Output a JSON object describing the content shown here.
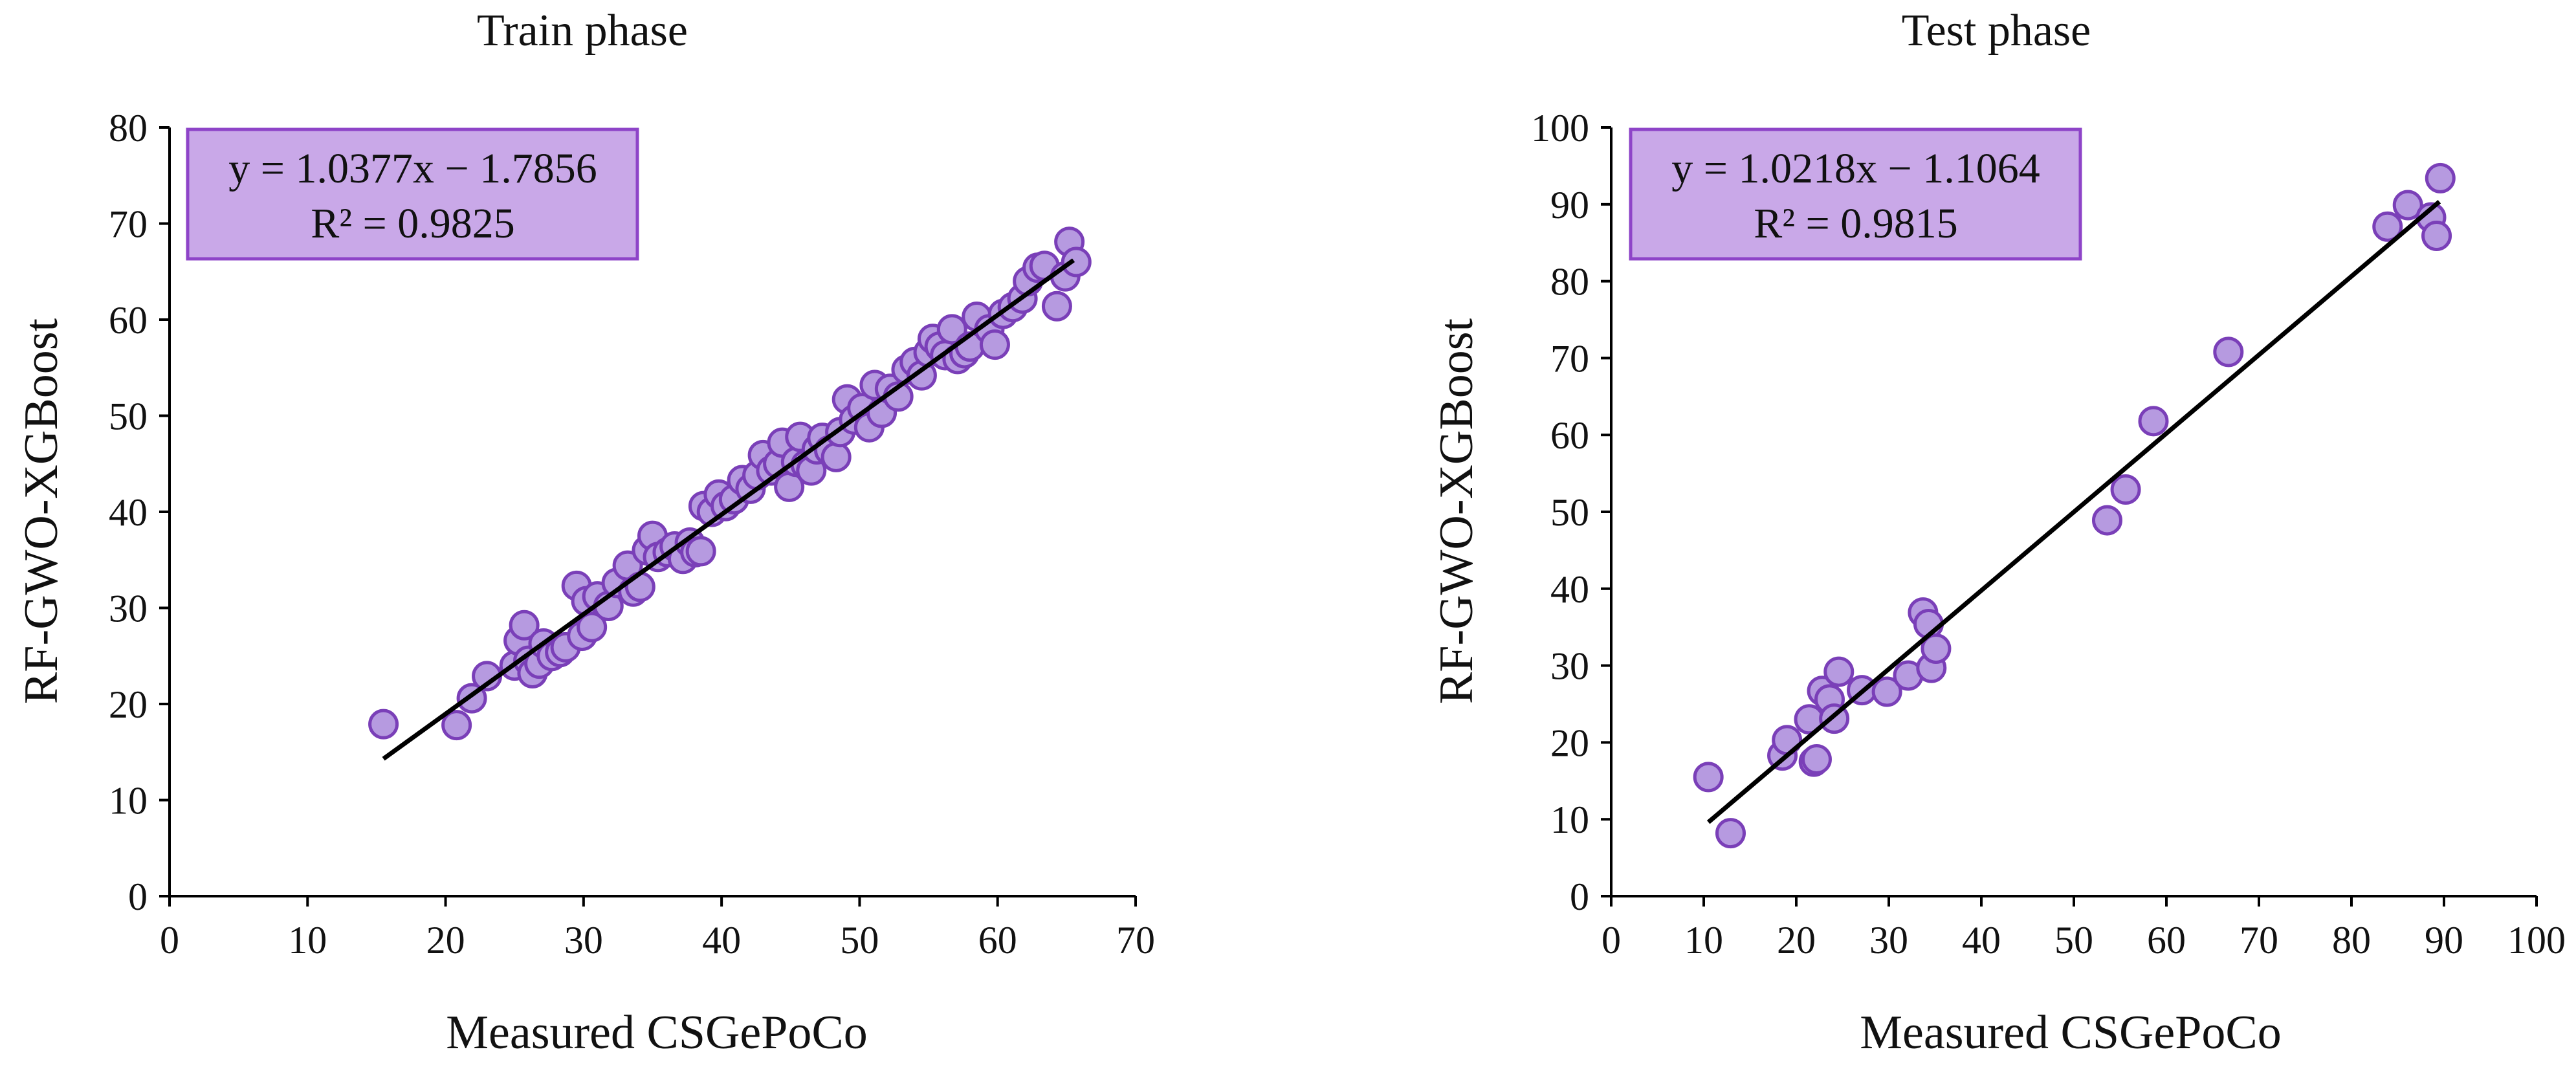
{
  "colors": {
    "marker_fill": "#B69AE0",
    "marker_stroke": "#7A3FB8",
    "box_fill": "#C9A8E8",
    "box_stroke": "#8E44C8",
    "axis": "#000000",
    "fit_line": "#000000"
  },
  "chart_data": [
    {
      "type": "scatter",
      "title": "Train phase",
      "xlabel": "Measured CSGePoCo",
      "ylabel": "RF-GWO-XGBoost",
      "xlim": [
        0,
        70
      ],
      "ylim": [
        0,
        80
      ],
      "xticks": [
        0,
        10,
        20,
        30,
        40,
        50,
        60,
        70
      ],
      "yticks": [
        0,
        10,
        20,
        30,
        40,
        50,
        60,
        70,
        80
      ],
      "equation": "y = 1.0377x − 1.7856",
      "r2": "R² = 0.9825",
      "fit": {
        "slope": 1.0377,
        "intercept": -1.7856,
        "x_range": [
          15.5,
          65.5
        ]
      },
      "grid": false,
      "points": [
        [
          15.5,
          17.9
        ],
        [
          20.8,
          17.8
        ],
        [
          21.9,
          20.6
        ],
        [
          23.0,
          22.9
        ],
        [
          25.0,
          24.0
        ],
        [
          25.3,
          26.6
        ],
        [
          25.7,
          28.2
        ],
        [
          26.0,
          24.5
        ],
        [
          26.3,
          23.2
        ],
        [
          26.8,
          24.2
        ],
        [
          27.1,
          26.3
        ],
        [
          27.7,
          25.0
        ],
        [
          28.3,
          25.4
        ],
        [
          28.7,
          25.9
        ],
        [
          29.5,
          32.3
        ],
        [
          29.9,
          27.1
        ],
        [
          30.2,
          30.7
        ],
        [
          30.6,
          28.0
        ],
        [
          31.0,
          31.2
        ],
        [
          31.8,
          30.2
        ],
        [
          32.4,
          32.6
        ],
        [
          33.2,
          34.4
        ],
        [
          33.6,
          31.7
        ],
        [
          34.1,
          32.2
        ],
        [
          34.6,
          36.0
        ],
        [
          35.0,
          37.5
        ],
        [
          35.4,
          35.3
        ],
        [
          36.1,
          35.8
        ],
        [
          36.6,
          36.4
        ],
        [
          37.2,
          35.1
        ],
        [
          37.7,
          36.8
        ],
        [
          38.1,
          35.8
        ],
        [
          38.5,
          35.9
        ],
        [
          38.7,
          40.6
        ],
        [
          39.3,
          40.0
        ],
        [
          39.8,
          41.8
        ],
        [
          40.3,
          40.6
        ],
        [
          40.9,
          41.3
        ],
        [
          41.5,
          43.3
        ],
        [
          42.1,
          42.4
        ],
        [
          42.6,
          43.8
        ],
        [
          43.0,
          45.9
        ],
        [
          43.6,
          44.3
        ],
        [
          44.1,
          45.0
        ],
        [
          44.4,
          47.2
        ],
        [
          44.9,
          42.6
        ],
        [
          45.4,
          45.2
        ],
        [
          45.7,
          47.8
        ],
        [
          46.1,
          44.9
        ],
        [
          46.5,
          44.3
        ],
        [
          46.9,
          46.5
        ],
        [
          47.3,
          47.7
        ],
        [
          47.8,
          46.4
        ],
        [
          48.3,
          45.7
        ],
        [
          48.6,
          48.3
        ],
        [
          49.1,
          51.7
        ],
        [
          49.6,
          49.6
        ],
        [
          50.2,
          50.8
        ],
        [
          50.7,
          48.8
        ],
        [
          51.1,
          53.2
        ],
        [
          51.6,
          50.3
        ],
        [
          52.2,
          52.8
        ],
        [
          52.8,
          52.0
        ],
        [
          53.4,
          54.8
        ],
        [
          54.0,
          55.6
        ],
        [
          54.5,
          54.2
        ],
        [
          55.0,
          56.6
        ],
        [
          55.3,
          58.0
        ],
        [
          55.8,
          57.2
        ],
        [
          56.2,
          56.3
        ],
        [
          56.7,
          59.0
        ],
        [
          57.1,
          55.9
        ],
        [
          57.6,
          56.5
        ],
        [
          58.0,
          57.2
        ],
        [
          58.5,
          60.3
        ],
        [
          59.4,
          59.0
        ],
        [
          59.8,
          57.4
        ],
        [
          60.4,
          60.6
        ],
        [
          61.1,
          61.3
        ],
        [
          61.8,
          62.2
        ],
        [
          62.2,
          64.0
        ],
        [
          62.9,
          65.4
        ],
        [
          63.4,
          65.6
        ],
        [
          64.3,
          61.4
        ],
        [
          64.9,
          64.5
        ],
        [
          65.2,
          68.1
        ],
        [
          65.7,
          66.0
        ]
      ]
    },
    {
      "type": "scatter",
      "title": "Test phase",
      "xlabel": "Measured CSGePoCo",
      "ylabel": "RF-GWO-XGBoost",
      "xlim": [
        0,
        100
      ],
      "ylim": [
        0,
        100
      ],
      "xticks": [
        0,
        10,
        20,
        30,
        40,
        50,
        60,
        70,
        80,
        90,
        100
      ],
      "yticks": [
        0,
        10,
        20,
        30,
        40,
        50,
        60,
        70,
        80,
        90,
        100
      ],
      "equation": "y = 1.0218x − 1.1064",
      "r2": "R² = 0.9815",
      "fit": {
        "slope": 1.0218,
        "intercept": -1.1064,
        "x_range": [
          10.5,
          89.5
        ]
      },
      "grid": false,
      "points": [
        [
          10.5,
          15.5
        ],
        [
          12.9,
          8.2
        ],
        [
          18.5,
          18.3
        ],
        [
          19.0,
          20.3
        ],
        [
          21.4,
          23.0
        ],
        [
          21.9,
          17.5
        ],
        [
          22.2,
          17.8
        ],
        [
          22.8,
          26.7
        ],
        [
          23.6,
          25.6
        ],
        [
          24.1,
          23.1
        ],
        [
          24.6,
          29.2
        ],
        [
          27.1,
          26.8
        ],
        [
          29.8,
          26.6
        ],
        [
          32.1,
          28.7
        ],
        [
          33.7,
          36.9
        ],
        [
          34.3,
          35.4
        ],
        [
          34.6,
          29.7
        ],
        [
          35.1,
          32.2
        ],
        [
          53.6,
          48.9
        ],
        [
          55.6,
          52.9
        ],
        [
          58.6,
          61.8
        ],
        [
          66.7,
          70.8
        ],
        [
          83.9,
          87.1
        ],
        [
          86.1,
          89.9
        ],
        [
          88.6,
          88.3
        ],
        [
          89.2,
          85.9
        ],
        [
          89.6,
          93.4
        ]
      ]
    }
  ]
}
